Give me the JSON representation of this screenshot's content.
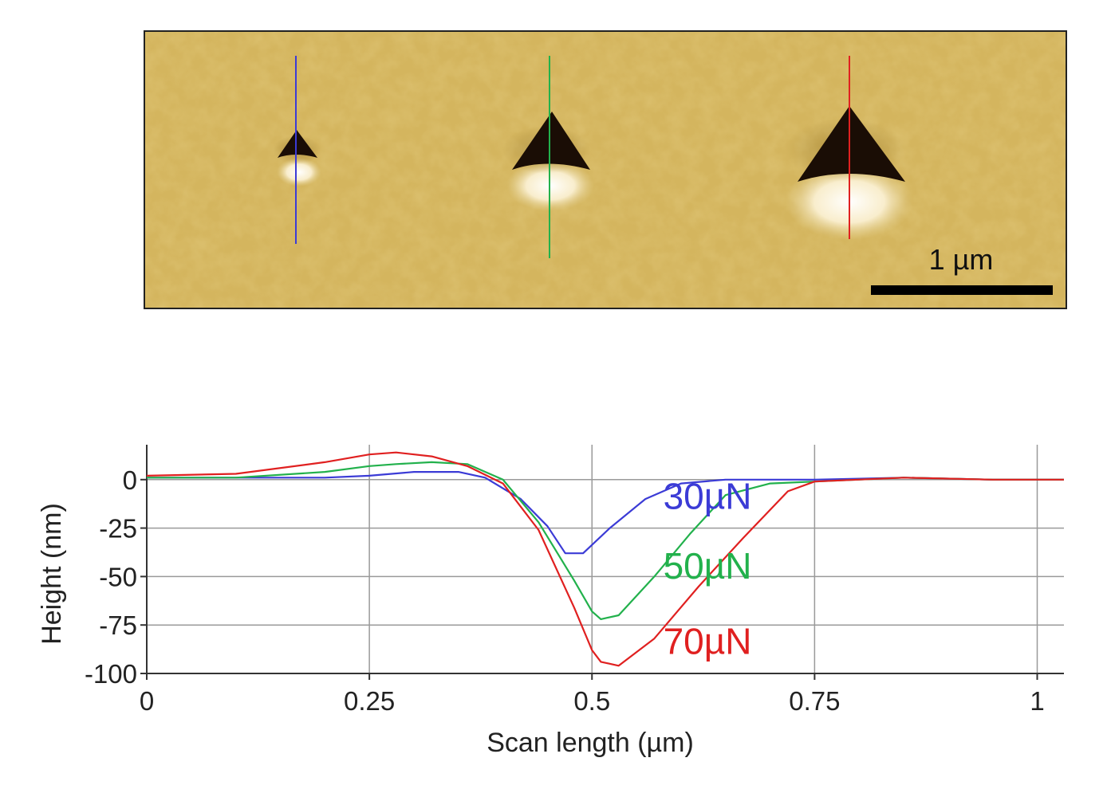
{
  "afm_image": {
    "scale_bar_label": "1 µm",
    "indents": [
      {
        "name": "30µN",
        "line_color": "#3b3bd6"
      },
      {
        "name": "50µN",
        "line_color": "#22b14c"
      },
      {
        "name": "70µN",
        "line_color": "#e02020"
      }
    ]
  },
  "chart_data": {
    "type": "line",
    "xlabel": "Scan length (µm)",
    "ylabel": "Height (nm)",
    "xlim": [
      0,
      1.03
    ],
    "ylim": [
      -100,
      18
    ],
    "x_ticks": [
      {
        "value": 0,
        "label": "0"
      },
      {
        "value": 0.25,
        "label": "0.25"
      },
      {
        "value": 0.5,
        "label": "0.5"
      },
      {
        "value": 0.75,
        "label": "0.75"
      },
      {
        "value": 1,
        "label": "1"
      }
    ],
    "y_ticks": [
      {
        "value": 0,
        "label": "0"
      },
      {
        "value": -25,
        "label": "-25"
      },
      {
        "value": -50,
        "label": "-50"
      },
      {
        "value": -75,
        "label": "-75"
      },
      {
        "value": -100,
        "label": "-100"
      }
    ],
    "grid": true,
    "series": [
      {
        "name": "30µN",
        "color": "#3b3bd6",
        "x": [
          0,
          0.1,
          0.2,
          0.25,
          0.3,
          0.35,
          0.38,
          0.42,
          0.45,
          0.47,
          0.49,
          0.52,
          0.56,
          0.6,
          0.65,
          0.7,
          0.75,
          0.85,
          0.95,
          1.03
        ],
        "y": [
          1,
          1,
          1,
          2,
          4,
          4,
          1,
          -10,
          -24,
          -38,
          -38,
          -25,
          -10,
          -2,
          0,
          0,
          0,
          1,
          0,
          0
        ]
      },
      {
        "name": "50µN",
        "color": "#22b14c",
        "x": [
          0,
          0.1,
          0.2,
          0.25,
          0.28,
          0.32,
          0.36,
          0.4,
          0.44,
          0.48,
          0.5,
          0.51,
          0.53,
          0.57,
          0.61,
          0.65,
          0.7,
          0.75,
          0.85,
          0.95,
          1.03
        ],
        "y": [
          1,
          1,
          4,
          7,
          8,
          9,
          8,
          0,
          -22,
          -52,
          -68,
          -72,
          -70,
          -50,
          -28,
          -8,
          -2,
          -1,
          1,
          0,
          0
        ]
      },
      {
        "name": "70µN",
        "color": "#e02020",
        "x": [
          0,
          0.1,
          0.2,
          0.25,
          0.28,
          0.32,
          0.36,
          0.4,
          0.44,
          0.48,
          0.5,
          0.51,
          0.53,
          0.57,
          0.62,
          0.67,
          0.72,
          0.75,
          0.85,
          0.95,
          1.03
        ],
        "y": [
          2,
          3,
          9,
          13,
          14,
          12,
          7,
          -2,
          -26,
          -66,
          -88,
          -94,
          -96,
          -82,
          -55,
          -30,
          -6,
          -1,
          1,
          0,
          0
        ]
      }
    ],
    "annotations": [
      {
        "text": "30µN",
        "color": "#3b3bd6",
        "x": 0.58,
        "y": -15
      },
      {
        "text": "50µN",
        "color": "#22b14c",
        "x": 0.58,
        "y": -51
      },
      {
        "text": "70µN",
        "color": "#e02020",
        "x": 0.58,
        "y": -90
      }
    ]
  }
}
